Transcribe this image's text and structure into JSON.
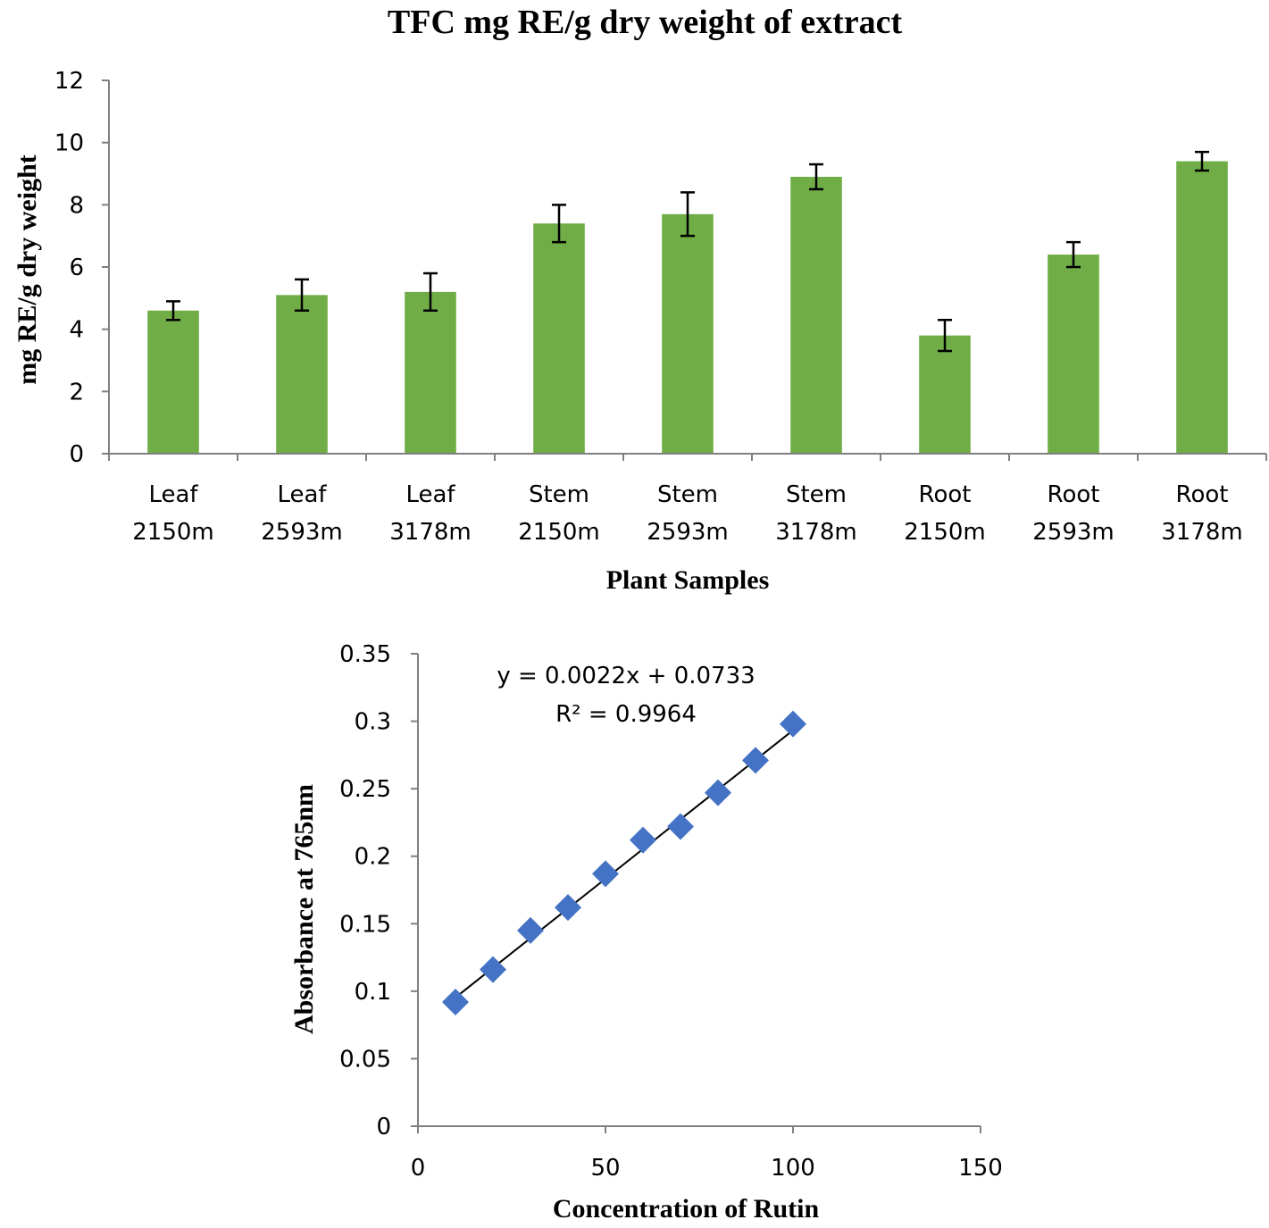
{
  "chart_data": [
    {
      "type": "bar",
      "title": "TFC mg RE/g dry weight of extract",
      "xlabel": "Plant Samples",
      "ylabel": "mg RE/g dry weight",
      "ylim": [
        0,
        12
      ],
      "yticks": [
        "0",
        "2",
        "4",
        "6",
        "8",
        "10",
        "12"
      ],
      "yticks_values": [
        0,
        2,
        4,
        6,
        8,
        10,
        12
      ],
      "categories": [
        [
          "Leaf",
          "2150m"
        ],
        [
          "Leaf",
          "2593m"
        ],
        [
          "Leaf",
          "3178m"
        ],
        [
          "Stem",
          "2150m"
        ],
        [
          "Stem",
          "2593m"
        ],
        [
          "Stem",
          "3178m"
        ],
        [
          "Root",
          "2150m"
        ],
        [
          "Root",
          "2593m"
        ],
        [
          "Root",
          "3178m"
        ]
      ],
      "values": [
        4.6,
        5.1,
        5.2,
        7.4,
        7.7,
        8.9,
        3.8,
        6.4,
        9.4
      ],
      "errors": [
        0.3,
        0.5,
        0.6,
        0.6,
        0.7,
        0.4,
        0.5,
        0.4,
        0.3
      ],
      "bar_color": "#70AD47"
    },
    {
      "type": "scatter",
      "xlabel": "Concentration of Rutin",
      "ylabel": "Absorbance at 765nm",
      "xlim": [
        0,
        150
      ],
      "ylim": [
        0,
        0.35
      ],
      "xticks": [
        "0",
        "50",
        "100",
        "150"
      ],
      "xticks_values": [
        0,
        50,
        100,
        150
      ],
      "yticks": [
        "0",
        "0.05",
        "0.1",
        "0.15",
        "0.2",
        "0.25",
        "0.3",
        "0.35"
      ],
      "yticks_values": [
        0,
        0.05,
        0.1,
        0.15,
        0.2,
        0.25,
        0.3,
        0.35
      ],
      "x": [
        10,
        20,
        30,
        40,
        50,
        60,
        70,
        80,
        90,
        100
      ],
      "y": [
        0.092,
        0.116,
        0.145,
        0.162,
        0.187,
        0.212,
        0.222,
        0.247,
        0.271,
        0.298
      ],
      "trendline": {
        "slope": 0.0022,
        "intercept": 0.0733
      },
      "equation": "y = 0.0022x + 0.0733",
      "r_squared": "R² = 0.9964",
      "marker_color": "#4472C4"
    }
  ]
}
